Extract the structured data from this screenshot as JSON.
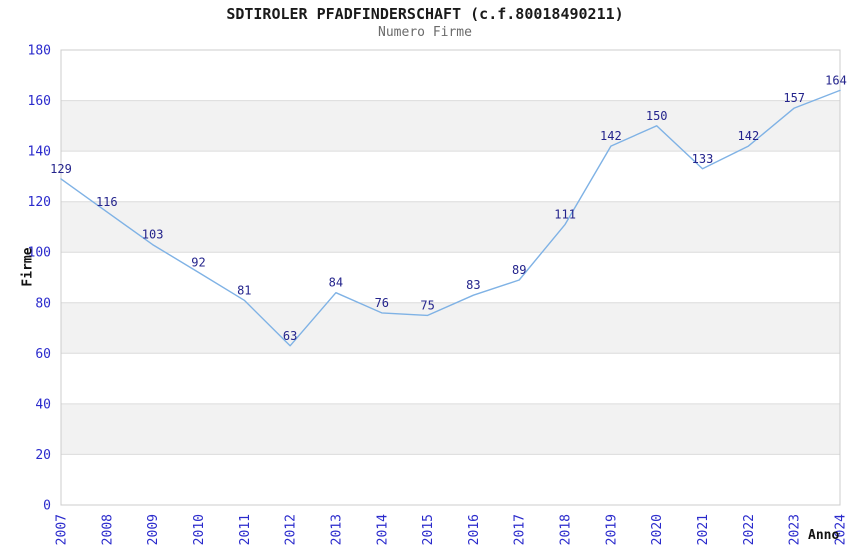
{
  "chart_data": {
    "type": "line",
    "title": "SDTIROLER PFADFINDERSCHAFT (c.f.80018490211)",
    "subtitle": "Numero Firme",
    "xlabel": "Anno",
    "ylabel": "Firme",
    "categories": [
      "2007",
      "2008",
      "2009",
      "2010",
      "2011",
      "2012",
      "2013",
      "2014",
      "2015",
      "2016",
      "2017",
      "2018",
      "2019",
      "2020",
      "2021",
      "2022",
      "2023",
      "2024"
    ],
    "values": [
      129,
      116,
      103,
      92,
      81,
      63,
      84,
      76,
      75,
      83,
      89,
      111,
      142,
      150,
      133,
      142,
      157,
      164
    ],
    "ylim": [
      0,
      180
    ],
    "y_ticks": [
      0,
      20,
      40,
      60,
      80,
      100,
      120,
      140,
      160,
      180
    ],
    "grid": "horizontal gridlines every 20 with alternating shaded bands",
    "legend": "none",
    "markers": "none",
    "colors": {
      "line": "#7fb2e5",
      "data_label": "#24248c",
      "tick_label": "#2a2acc",
      "axis_title": "#111111",
      "title": "#1a1a1a",
      "subtitle": "#6b6b6b",
      "band_fill": "#f2f2f2",
      "gridline": "#dcdcdc",
      "plot_border": "#cccccc",
      "background": "#ffffff"
    }
  }
}
